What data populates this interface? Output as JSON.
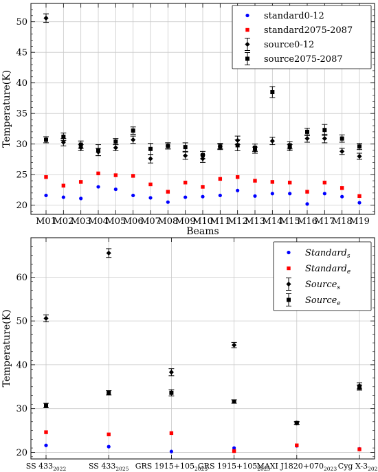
{
  "chart_data": [
    {
      "type": "scatter",
      "categories": [
        "M01",
        "M02",
        "M03",
        "M04",
        "M05",
        "M06",
        "M07",
        "M08",
        "M09",
        "M10",
        "M11",
        "M12",
        "M13",
        "M14",
        "M15",
        "M16",
        "M17",
        "M18",
        "M19"
      ],
      "xlabel": "Beams",
      "ylabel": "Temperature(K)",
      "ylim": [
        18.5,
        53
      ],
      "yticks": [
        20,
        25,
        30,
        35,
        40,
        45,
        50
      ],
      "grid": true,
      "legend_position": "top-right",
      "series": [
        {
          "name": "standard0-12",
          "marker": "circle",
          "color": "#0000ff",
          "values": [
            21.6,
            21.3,
            21.1,
            23.0,
            22.6,
            21.6,
            21.2,
            20.5,
            21.3,
            21.4,
            21.6,
            22.4,
            21.5,
            21.9,
            21.9,
            20.2,
            21.9,
            21.4,
            20.4
          ]
        },
        {
          "name": "standard2075-2087",
          "marker": "square",
          "color": "#ff0000",
          "values": [
            24.6,
            23.2,
            23.8,
            25.2,
            24.9,
            24.8,
            23.4,
            22.2,
            23.7,
            23.0,
            24.3,
            24.6,
            24.0,
            23.8,
            23.7,
            22.2,
            23.7,
            22.8,
            21.5
          ]
        },
        {
          "name": "source0-12",
          "marker": "diamond",
          "color": "#000000",
          "values": [
            50.6,
            30.3,
            29.4,
            28.7,
            29.4,
            30.7,
            27.6,
            29.7,
            28.1,
            27.6,
            29.6,
            30.6,
            29.0,
            30.5,
            29.4,
            30.9,
            30.9,
            28.8,
            28.0
          ],
          "errors": [
            0.7,
            0.6,
            0.5,
            0.6,
            0.5,
            0.6,
            0.7,
            0.5,
            0.6,
            0.6,
            0.4,
            0.7,
            0.5,
            0.6,
            0.5,
            0.6,
            0.7,
            0.5,
            0.5
          ]
        },
        {
          "name": "source2075-2087",
          "marker": "square",
          "color": "#000000",
          "values": [
            30.7,
            31.2,
            29.9,
            29.0,
            30.4,
            32.2,
            29.2,
            29.7,
            29.5,
            28.2,
            29.6,
            29.8,
            29.4,
            38.5,
            29.8,
            32.0,
            32.3,
            30.9,
            29.6
          ],
          "errors": [
            0.5,
            0.6,
            0.6,
            0.9,
            0.5,
            0.6,
            0.9,
            0.5,
            0.7,
            0.6,
            0.5,
            0.9,
            0.6,
            0.9,
            0.6,
            0.6,
            0.9,
            0.6,
            0.5
          ]
        }
      ]
    },
    {
      "type": "scatter",
      "categories": [
        {
          "base": "SS 433",
          "sub": "2022"
        },
        {
          "base": "SS 433",
          "sub": "2025"
        },
        {
          "base": "GRS 1915+105",
          "sub": "2023"
        },
        {
          "base": "GRS 1915+105",
          "sub": "2025"
        },
        {
          "base": "MAXI J1820+070",
          "sub": "2023"
        },
        {
          "base": "Cyg X-3",
          "sub": "2023"
        }
      ],
      "xlabel": "",
      "ylabel": "Temperature(K)",
      "ylim": [
        18.5,
        69
      ],
      "yticks": [
        20,
        30,
        40,
        50,
        60
      ],
      "grid": true,
      "legend_position": "top-right",
      "series": [
        {
          "name": "Standard",
          "name_sub": "s",
          "marker": "circle",
          "color": "#0000ff",
          "values": [
            21.6,
            21.3,
            20.2,
            21.0,
            21.5,
            20.8
          ]
        },
        {
          "name": "Standard",
          "name_sub": "e",
          "marker": "square",
          "color": "#ff0000",
          "values": [
            24.6,
            24.1,
            24.4,
            20.3,
            21.6,
            20.7
          ]
        },
        {
          "name": "Source",
          "name_sub": "s",
          "marker": "diamond",
          "color": "#000000",
          "values": [
            50.6,
            65.5,
            38.3,
            44.5,
            26.7,
            35.2
          ],
          "errors": [
            0.8,
            1.0,
            0.8,
            0.6,
            0.3,
            0.7
          ]
        },
        {
          "name": "Source",
          "name_sub": "e",
          "marker": "square",
          "color": "#000000",
          "values": [
            30.7,
            33.6,
            33.6,
            31.6,
            26.7,
            34.8
          ],
          "errors": [
            0.5,
            0.5,
            0.7,
            0.4,
            0.3,
            0.6
          ]
        }
      ]
    }
  ]
}
